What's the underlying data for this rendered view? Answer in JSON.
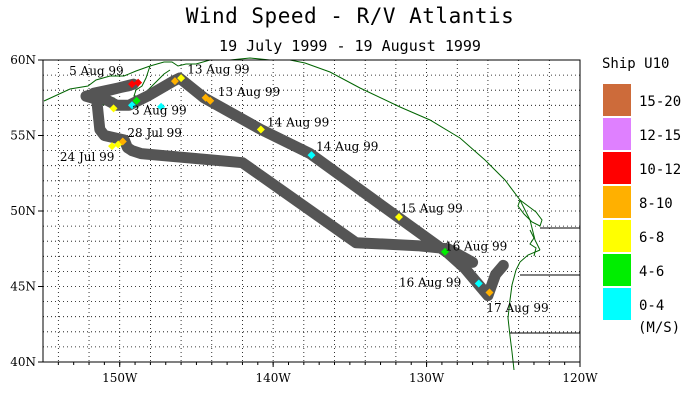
{
  "title": "Wind Speed - R/V Atlantis",
  "subtitle": "19 July 1999 - 19 August 1999",
  "map": {
    "lon_range": [
      -155,
      -120
    ],
    "lat_range": [
      40,
      60
    ],
    "x_ticks": [
      {
        "lon": -150,
        "label": "150W"
      },
      {
        "lon": -140,
        "label": "140W"
      },
      {
        "lon": -130,
        "label": "130W"
      },
      {
        "lon": -120,
        "label": "120W"
      }
    ],
    "y_ticks": [
      {
        "lat": 60,
        "label": "60N"
      },
      {
        "lat": 55,
        "label": "55N"
      },
      {
        "lat": 50,
        "label": "50N"
      },
      {
        "lat": 45,
        "label": "45N"
      },
      {
        "lat": 40,
        "label": "40N"
      }
    ],
    "grid": "dotted",
    "coast_color": "#006400",
    "border_color": "#000000",
    "track_color": "#555555"
  },
  "legend": {
    "title": "Ship U10",
    "units": "(M/S)",
    "bins": [
      {
        "label": "15-20",
        "color": "#cd6b3a"
      },
      {
        "label": "12-15",
        "color": "#df80ff"
      },
      {
        "label": "10-12",
        "color": "#ff0000"
      },
      {
        "label": "8-10",
        "color": "#ffb000"
      },
      {
        "label": "6-8",
        "color": "#ffff00"
      },
      {
        "label": "4-6",
        "color": "#00ee00"
      },
      {
        "label": "0-4",
        "color": "#00ffff"
      }
    ]
  },
  "chart_data": {
    "type": "map-track",
    "title": "Wind Speed - R/V Atlantis",
    "track": [
      [
        -127.0,
        46.6
      ],
      [
        -128.6,
        47.5
      ],
      [
        -130.6,
        47.7
      ],
      [
        -134.6,
        47.9
      ],
      [
        -142.0,
        53.2
      ],
      [
        -148.6,
        53.8
      ],
      [
        -149.2,
        54.0
      ],
      [
        -149.5,
        54.2
      ],
      [
        -149.7,
        54.7
      ],
      [
        -151.0,
        55.0
      ],
      [
        -151.3,
        55.4
      ],
      [
        -151.5,
        57.4
      ],
      [
        -152.2,
        57.6
      ],
      [
        -149.1,
        58.4
      ],
      [
        -149.4,
        58.3
      ],
      [
        -151.7,
        57.8
      ],
      [
        -150.2,
        57.0
      ],
      [
        -149.4,
        57.0
      ],
      [
        -148.2,
        57.6
      ],
      [
        -146.5,
        58.6
      ],
      [
        -146.1,
        58.8
      ],
      [
        -144.5,
        57.5
      ],
      [
        -140.8,
        55.4
      ],
      [
        -137.6,
        53.8
      ],
      [
        -128.6,
        47.2
      ],
      [
        -127.5,
        46.2
      ],
      [
        -126.0,
        44.4
      ],
      [
        -125.5,
        45.8
      ],
      [
        -125.0,
        46.4
      ]
    ],
    "wind_points": [
      {
        "lon": -149.2,
        "lat": 58.4,
        "speed_bin": "10-12"
      },
      {
        "lon": -148.8,
        "lat": 58.5,
        "speed_bin": "10-12"
      },
      {
        "lon": -150.4,
        "lat": 56.8,
        "speed_bin": "6-8"
      },
      {
        "lon": -149.2,
        "lat": 57.0,
        "speed_bin": "0-4"
      },
      {
        "lon": -148.9,
        "lat": 57.3,
        "speed_bin": "4-6"
      },
      {
        "lon": -147.3,
        "lat": 56.9,
        "speed_bin": "0-4"
      },
      {
        "lon": -146.4,
        "lat": 58.6,
        "speed_bin": "8-10"
      },
      {
        "lon": -146.0,
        "lat": 58.8,
        "speed_bin": "6-8"
      },
      {
        "lon": -144.4,
        "lat": 57.5,
        "speed_bin": "8-10"
      },
      {
        "lon": -144.1,
        "lat": 57.3,
        "speed_bin": "8-10"
      },
      {
        "lon": -140.8,
        "lat": 55.4,
        "speed_bin": "6-8"
      },
      {
        "lon": -137.5,
        "lat": 53.7,
        "speed_bin": "0-4"
      },
      {
        "lon": -131.8,
        "lat": 49.6,
        "speed_bin": "6-8"
      },
      {
        "lon": -128.8,
        "lat": 47.3,
        "speed_bin": "4-6"
      },
      {
        "lon": -126.6,
        "lat": 45.2,
        "speed_bin": "0-4"
      },
      {
        "lon": -125.9,
        "lat": 44.6,
        "speed_bin": "8-10"
      },
      {
        "lon": -150.5,
        "lat": 54.3,
        "speed_bin": "6-8"
      },
      {
        "lon": -150.1,
        "lat": 54.4,
        "speed_bin": "6-8"
      },
      {
        "lon": -149.8,
        "lat": 54.6,
        "speed_bin": "8-10"
      }
    ],
    "date_labels": [
      {
        "text": "5 Aug 99",
        "lon": -153.3,
        "lat": 59.0
      },
      {
        "text": "13 Aug 99",
        "lon": -145.6,
        "lat": 59.1
      },
      {
        "text": "13 Aug 99",
        "lon": -143.6,
        "lat": 57.6
      },
      {
        "text": "3 Aug 99",
        "lon": -149.2,
        "lat": 56.4
      },
      {
        "text": "14 Aug 99",
        "lon": -140.4,
        "lat": 55.6
      },
      {
        "text": "28 Jul 99",
        "lon": -149.5,
        "lat": 54.9
      },
      {
        "text": "24 Jul 99",
        "lon": -153.9,
        "lat": 53.3
      },
      {
        "text": "14 Aug 99",
        "lon": -137.2,
        "lat": 54.0
      },
      {
        "text": "15 Aug 99",
        "lon": -131.7,
        "lat": 49.9
      },
      {
        "text": "16 Aug 99",
        "lon": -128.8,
        "lat": 47.4
      },
      {
        "text": "16 Aug 99",
        "lon": -131.8,
        "lat": 45.0
      },
      {
        "text": "17 Aug 99",
        "lon": -126.1,
        "lat": 43.3
      }
    ]
  }
}
